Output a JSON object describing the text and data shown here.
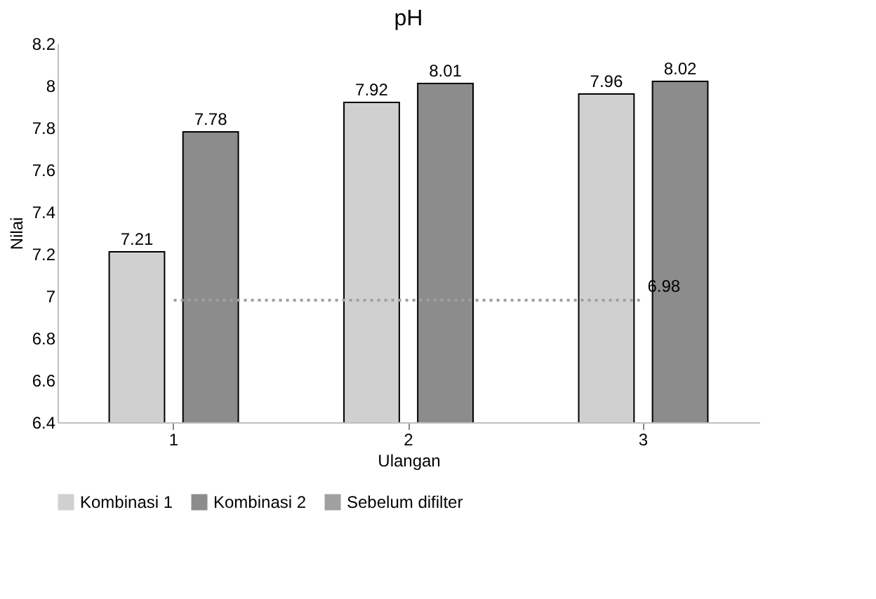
{
  "chart_data": {
    "type": "bar",
    "title": "pH",
    "xlabel": "Ulangan",
    "ylabel": "Nilai",
    "categories": [
      "1",
      "2",
      "3"
    ],
    "series": [
      {
        "name": "Kombinasi 1",
        "color": "#d0d0d0",
        "values": [
          7.21,
          7.92,
          7.96
        ],
        "value_labels": [
          "7.21",
          "7.92",
          "7.96"
        ]
      },
      {
        "name": "Kombinasi 2",
        "color": "#8c8c8c",
        "values": [
          7.78,
          8.01,
          8.02
        ],
        "value_labels": [
          "7.78",
          "8.01",
          "8.02"
        ]
      },
      {
        "name": "Sebelum difilter",
        "type": "line",
        "color": "#a0a0a0",
        "line_style": "dotted",
        "values": [
          6.98,
          6.98,
          6.98
        ],
        "value_labels": [
          null,
          null,
          "6.98"
        ]
      }
    ],
    "ylim": [
      6.4,
      8.2
    ],
    "yticks": [
      6.4,
      6.6,
      6.8,
      7,
      7.2,
      7.4,
      7.6,
      7.8,
      8,
      8.2
    ],
    "grid": false,
    "legend": "bottom"
  }
}
